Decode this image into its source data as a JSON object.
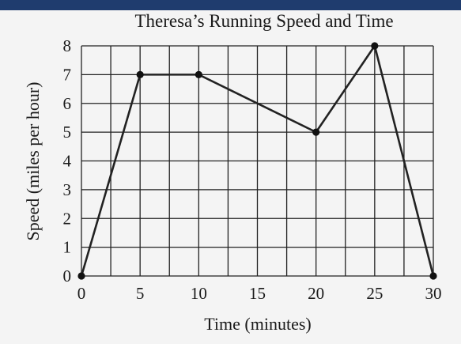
{
  "colors": {
    "top_bar": "#1f3c6e",
    "background": "#f4f4f4",
    "grid": "#222222",
    "line": "#222222",
    "marker": "#111111"
  },
  "chart_data": {
    "type": "line",
    "title": "Theresa’s Running Speed and Time",
    "xlabel": "Time (minutes)",
    "ylabel": "Speed (miles per hour)",
    "xlim": [
      0,
      30
    ],
    "ylim": [
      0,
      8
    ],
    "x_grid_step": 2.5,
    "y_grid_step": 1,
    "x_ticks": [
      0,
      5,
      10,
      15,
      20,
      25,
      30
    ],
    "y_ticks": [
      0,
      1,
      2,
      3,
      4,
      5,
      6,
      7,
      8
    ],
    "grid": true,
    "series": [
      {
        "x": [
          0,
          5,
          10,
          20,
          25,
          30
        ],
        "y": [
          0,
          7,
          7,
          5,
          8,
          0
        ]
      }
    ]
  }
}
